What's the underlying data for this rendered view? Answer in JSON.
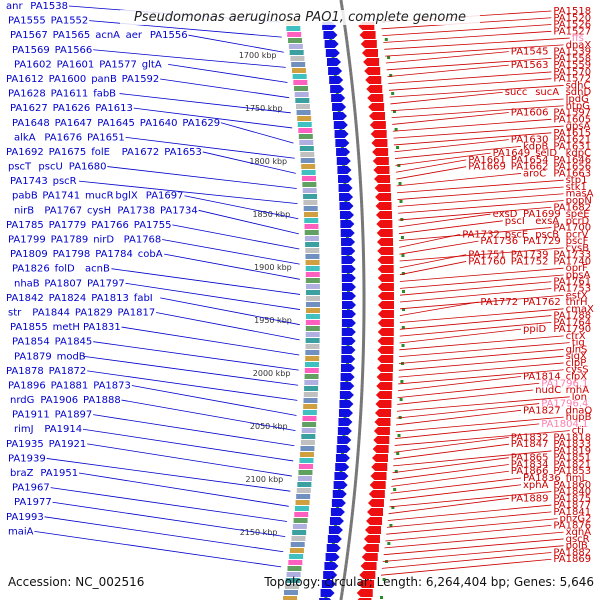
{
  "title": "Pseudomonas aeruginosa PAO1, complete genome",
  "footer": {
    "accession": "Accession: NC_002516",
    "topology": "Topology: circular; Length: 6,264,404 bp; Genes: 5,646"
  },
  "colors": {
    "forward": "#0000cc",
    "reverse": "#cc0000",
    "highlight": "#ff80b0",
    "backbone": "#777777"
  },
  "kbp_ticks": [
    "1700 kbp",
    "1750 kbp",
    "1800 kbp",
    "1850 kbp",
    "1900 kbp",
    "1950 kbp",
    "2000 kbp",
    "2050 kbp",
    "2100 kbp",
    "2150 kbp"
  ],
  "left_labels": [
    [
      "anr",
      "PA1538"
    ],
    [
      "PA1555",
      "PA1552"
    ],
    [
      "PA1567",
      "PA1565",
      "acnA",
      "aer",
      "PA1556"
    ],
    [
      "PA1569",
      "PA1566"
    ],
    [
      "PA1602",
      "PA1601",
      "PA1577",
      "gltA"
    ],
    [
      "PA1612",
      "PA1600",
      "panB",
      "PA1592"
    ],
    [
      "PA1628",
      "PA1611",
      "fabB"
    ],
    [
      "PA1627",
      "PA1626",
      "PA1613"
    ],
    [
      "PA1648",
      "PA1647",
      "PA1645",
      "PA1640",
      "PA1629"
    ],
    [
      "alkA",
      "PA1676",
      "PA1651"
    ],
    [
      "PA1692",
      "PA1675",
      "folE",
      "PA1672",
      "PA1653"
    ],
    [
      "pscT",
      "pscU",
      "PA1680"
    ],
    [
      "PA1743",
      "pscR"
    ],
    [
      "pabB",
      "PA1741",
      "mucR",
      "bglX",
      "PA1697"
    ],
    [
      "nirB",
      "PA1767",
      "cysH",
      "PA1738",
      "PA1734"
    ],
    [
      "PA1785",
      "PA1779",
      "PA1766",
      "PA1755"
    ],
    [
      "PA1799",
      "PA1789",
      "nirD",
      "PA1768"
    ],
    [
      "PA1809",
      "PA1798",
      "PA1784",
      "cobA"
    ],
    [
      "PA1826",
      "folD",
      "acnB"
    ],
    [
      "nhaB",
      "PA1807",
      "PA1797"
    ],
    [
      "PA1842",
      "PA1824",
      "PA1813",
      "fabI"
    ],
    [
      "str",
      "PA1844",
      "PA1829",
      "PA1817"
    ],
    [
      "PA1855",
      "metH",
      "PA1831"
    ],
    [
      "PA1854",
      "PA1845"
    ],
    [
      "PA1879",
      "modB"
    ],
    [
      "PA1878",
      "PA1872"
    ],
    [
      "PA1896",
      "PA1881",
      "PA1873"
    ],
    [
      "nrdG",
      "PA1906",
      "PA1888"
    ],
    [
      "PA1911",
      "PA1897"
    ],
    [
      "rimJ",
      "PA1914"
    ],
    [
      "PA1935",
      "PA1921"
    ],
    [
      "PA1939"
    ],
    [
      "braZ",
      "PA1951"
    ],
    [
      "PA1967"
    ],
    [
      "PA1977"
    ],
    [
      "PA1993"
    ],
    [
      "maiA"
    ]
  ],
  "right_labels": [
    [
      "PA1518"
    ],
    [
      "PA1520"
    ],
    [
      "PA1526"
    ],
    [
      "PA1527"
    ],
    [
      "ffs"
    ],
    [
      "dnaX"
    ],
    [
      "PA1545",
      "PA1539"
    ],
    [
      "PA1558"
    ],
    [
      "PA1563",
      "PA1559"
    ],
    [
      "PA1570"
    ],
    [
      "PA1572"
    ],
    [
      "sdhC"
    ],
    [
      "succ",
      "sucA",
      "sdhD"
    ],
    [
      "lpdG"
    ],
    [
      "htpG"
    ],
    [
      "PA1606",
      "PA1597"
    ],
    [
      "PA1605"
    ],
    [
      "gpsA"
    ],
    [
      "PA1615"
    ],
    [
      "PA1630",
      "PA1621"
    ],
    [
      "kdpB",
      "PA1631"
    ],
    [
      "PA1649",
      "selD",
      "kdpC"
    ],
    [
      "PA1661",
      "PA1654",
      "PA1646"
    ],
    [
      "PA1669",
      "PA1662",
      "PA1656"
    ],
    [
      "aroC",
      "PA1663"
    ],
    [
      "stp1"
    ],
    [
      "stk1"
    ],
    [
      "masA"
    ],
    [
      "popN"
    ],
    [
      "PA1682"
    ],
    [
      "exsD",
      "PA1699",
      "speE"
    ],
    [
      "pscI",
      "exsA",
      "pcrD"
    ],
    [
      "PA1700"
    ],
    [
      "PA1732",
      "pscE",
      "pscB",
      "pcrV"
    ],
    [
      "PA1736",
      "PA1729",
      "pscF"
    ],
    [
      "cysB"
    ],
    [
      "PA1751",
      "PA1739",
      "PA1733"
    ],
    [
      "PA1760",
      "PA1752",
      "PA1740"
    ],
    [
      "oprF"
    ],
    [
      "ppsA"
    ],
    [
      "PA1761"
    ],
    [
      "PA1753"
    ],
    [
      "estX"
    ],
    [
      "PA1772",
      "PA1762",
      "thrH"
    ],
    [
      "cmaX"
    ],
    [
      "PA1788"
    ],
    [
      "PA1764"
    ],
    [
      "ppiD",
      "PA1790"
    ],
    [
      "cfrX"
    ],
    [
      "tig"
    ],
    [
      "glnS"
    ],
    [
      "sigX"
    ],
    [
      "clpP"
    ],
    [
      "cysS"
    ],
    [
      "PA1814",
      "clpX"
    ],
    [
      "PA1796.1"
    ],
    [
      "nudC",
      "rnhA"
    ],
    [
      "lon"
    ],
    [
      "PA1796.4"
    ],
    [
      "PA1827",
      "dnaQ"
    ],
    [
      "hupB"
    ],
    [
      "PA1804.1"
    ],
    [
      "cti"
    ],
    [
      "PA1832",
      "PA1818"
    ],
    [
      "PA1847",
      "PA1833"
    ],
    [
      "PA1819"
    ],
    [
      "PA1865",
      "PA1851"
    ],
    [
      "PA1834",
      "PA1821"
    ],
    [
      "PA1866",
      "PA1853"
    ],
    [
      "PA1836",
      "fimL"
    ],
    [
      "xphA",
      "PA1860"
    ],
    [
      "PA1840"
    ],
    [
      "PA1889",
      "PA1875"
    ],
    [
      "PA1877"
    ],
    [
      "PA1841"
    ],
    [
      "phzG2"
    ],
    [
      "PA1876"
    ],
    [
      "xqhA"
    ],
    [
      "qscR"
    ],
    [
      "polB"
    ],
    [
      "PA1882"
    ],
    [
      "PA1869"
    ]
  ],
  "highlight_labels": [
    "ffs",
    "PA1796.1",
    "PA1796.4",
    "PA1804.1"
  ]
}
